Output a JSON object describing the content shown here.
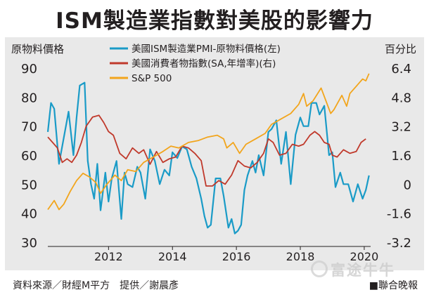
{
  "header": {
    "title": "ISM製造業指數對美股的影響力"
  },
  "chart_data": {
    "type": "line",
    "left_axis_label": "原物料價格",
    "right_axis_label": "百分比",
    "left_ticks": [
      "90",
      "80",
      "70",
      "60",
      "50",
      "40",
      "30"
    ],
    "right_ticks": [
      "6.4",
      "4.8",
      "3.2",
      "1.6",
      "0",
      "-1.6",
      "-3.2"
    ],
    "x_ticks": [
      "2012",
      "2014",
      "2016",
      "2018",
      "2020"
    ],
    "ylim_left": [
      30,
      90
    ],
    "ylim_right": [
      -3.2,
      6.4
    ],
    "xlim": [
      2010.1,
      2020.2
    ],
    "legend_position": "top-center",
    "grid": false,
    "series": [
      {
        "name": "美國ISM製造業PMI-原物料價格(左)",
        "axis": "left",
        "color": "#1a9bc7",
        "x": [
          2010.1,
          2010.2,
          2010.3,
          2010.45,
          2010.6,
          2010.75,
          2010.9,
          2011.0,
          2011.1,
          2011.25,
          2011.35,
          2011.45,
          2011.55,
          2011.65,
          2011.75,
          2011.9,
          2012.0,
          2012.1,
          2012.25,
          2012.4,
          2012.5,
          2012.6,
          2012.75,
          2012.9,
          2013.0,
          2013.15,
          2013.3,
          2013.45,
          2013.6,
          2013.75,
          2013.9,
          2014.0,
          2014.15,
          2014.3,
          2014.45,
          2014.6,
          2014.75,
          2014.9,
          2015.0,
          2015.1,
          2015.2,
          2015.35,
          2015.5,
          2015.6,
          2015.75,
          2015.85,
          2015.95,
          2016.05,
          2016.15,
          2016.25,
          2016.35,
          2016.5,
          2016.6,
          2016.7,
          2016.85,
          2017.0,
          2017.1,
          2017.25,
          2017.4,
          2017.55,
          2017.7,
          2017.85,
          2018.0,
          2018.1,
          2018.25,
          2018.35,
          2018.5,
          2018.6,
          2018.75,
          2018.9,
          2019.0,
          2019.1,
          2019.25,
          2019.35,
          2019.5,
          2019.65,
          2019.8,
          2019.95,
          2020.05,
          2020.15
        ],
        "y": [
          68,
          78,
          76,
          57,
          66,
          75,
          60,
          73,
          84,
          85,
          58,
          50,
          45,
          57,
          41,
          54,
          44,
          52,
          58,
          38,
          54,
          50,
          49,
          56,
          54,
          45,
          62,
          58,
          50,
          55,
          53,
          61,
          59,
          63,
          62,
          56,
          52,
          45,
          39,
          35,
          36,
          52,
          52,
          46,
          35,
          38,
          33,
          34,
          36,
          48,
          53,
          58,
          54,
          60,
          53,
          68,
          69,
          72,
          57,
          68,
          50,
          67,
          73,
          70,
          70,
          78,
          78,
          74,
          77,
          60,
          61,
          49,
          54,
          50,
          50,
          44,
          50,
          45,
          48,
          53
        ]
      },
      {
        "name": "美國消費者物指數(SA,年增率)(右)",
        "axis": "right",
        "color": "#c0392b",
        "x": [
          2010.1,
          2010.25,
          2010.4,
          2010.55,
          2010.7,
          2010.85,
          2011.0,
          2011.15,
          2011.3,
          2011.5,
          2011.7,
          2011.85,
          2012.0,
          2012.15,
          2012.35,
          2012.55,
          2012.75,
          2012.95,
          2013.1,
          2013.3,
          2013.5,
          2013.7,
          2013.9,
          2014.1,
          2014.3,
          2014.5,
          2014.7,
          2014.9,
          2015.05,
          2015.25,
          2015.45,
          2015.65,
          2015.85,
          2016.05,
          2016.25,
          2016.45,
          2016.65,
          2016.85,
          2017.0,
          2017.15,
          2017.35,
          2017.55,
          2017.75,
          2017.95,
          2018.1,
          2018.3,
          2018.45,
          2018.6,
          2018.75,
          2018.9,
          2019.0,
          2019.15,
          2019.35,
          2019.55,
          2019.75,
          2019.9,
          2020.05
        ],
        "y": [
          2.6,
          2.3,
          2.0,
          1.2,
          1.4,
          1.2,
          1.6,
          2.3,
          3.2,
          3.7,
          3.8,
          3.4,
          2.9,
          2.7,
          1.7,
          1.4,
          2.0,
          1.7,
          1.9,
          1.1,
          1.8,
          1.2,
          1.4,
          1.5,
          2.1,
          2.0,
          1.7,
          1.3,
          -0.1,
          -0.1,
          0.2,
          0.0,
          0.5,
          1.3,
          1.0,
          0.9,
          1.2,
          1.7,
          2.5,
          2.3,
          1.6,
          1.7,
          2.2,
          2.1,
          2.2,
          2.7,
          2.9,
          2.7,
          2.3,
          2.2,
          1.6,
          1.5,
          1.9,
          1.7,
          1.8,
          2.3,
          2.5
        ]
      },
      {
        "name": "S&P 500",
        "axis": "right",
        "color": "#f2a51c",
        "x": [
          2010.1,
          2010.3,
          2010.45,
          2010.6,
          2010.8,
          2011.0,
          2011.2,
          2011.4,
          2011.6,
          2011.75,
          2011.95,
          2012.2,
          2012.4,
          2012.6,
          2012.85,
          2013.1,
          2013.4,
          2013.7,
          2013.95,
          2014.2,
          2014.5,
          2014.8,
          2015.1,
          2015.4,
          2015.6,
          2015.7,
          2015.9,
          2016.1,
          2016.3,
          2016.6,
          2016.9,
          2017.1,
          2017.4,
          2017.7,
          2017.95,
          2018.1,
          2018.2,
          2018.4,
          2018.65,
          2018.8,
          2018.95,
          2019.05,
          2019.3,
          2019.45,
          2019.55,
          2019.8,
          2019.95,
          2020.05,
          2020.15
        ],
        "y": [
          -1.4,
          -0.9,
          -1.4,
          -1.1,
          -0.4,
          0.2,
          0.6,
          0.4,
          0.1,
          -0.5,
          0.0,
          0.5,
          0.2,
          0.8,
          0.7,
          1.2,
          1.5,
          1.8,
          2.1,
          2.0,
          2.3,
          2.4,
          2.6,
          2.7,
          2.5,
          2.0,
          2.3,
          1.7,
          2.2,
          2.5,
          2.8,
          3.3,
          3.6,
          3.9,
          4.4,
          5.0,
          4.3,
          4.6,
          5.3,
          4.6,
          3.9,
          4.1,
          4.9,
          4.3,
          5.0,
          5.5,
          5.8,
          5.7,
          6.1
        ]
      }
    ]
  },
  "footer": {
    "source": "資料來源／財經M平方　提供／謝晨彥",
    "credit": "■聯合晚報"
  },
  "watermark": {
    "text": "富途牛牛"
  }
}
